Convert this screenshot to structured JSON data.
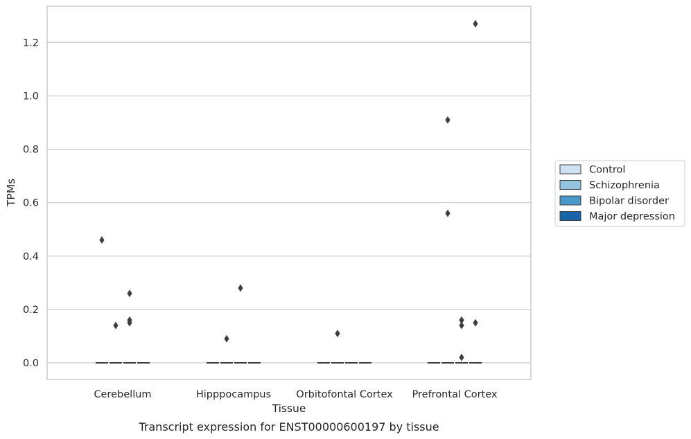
{
  "chart_data": {
    "type": "box",
    "caption": "Transcript expression for ENST00000600197 by tissue",
    "xlabel": "Tissue",
    "ylabel": "TPMs",
    "categories": [
      "Cerebellum",
      "Hipppocampus",
      "Orbitofontal Cortex",
      "Prefrontal Cortex"
    ],
    "ylim": [
      -0.06,
      1.33
    ],
    "yticks": [
      "0.0",
      "0.2",
      "0.4",
      "0.6",
      "0.8",
      "1.0",
      "1.2"
    ],
    "grid": true,
    "legend_position": "right",
    "series": [
      {
        "name": "Control",
        "color": "#d0e1f2"
      },
      {
        "name": "Schizophrenia",
        "color": "#94c4df"
      },
      {
        "name": "Bipolar disorder",
        "color": "#4a98c9"
      },
      {
        "name": "Major depression",
        "color": "#1764ab"
      }
    ],
    "medians": [
      [
        0,
        0,
        0,
        0
      ],
      [
        0,
        0,
        0,
        0
      ],
      [
        0,
        0,
        0,
        0
      ],
      [
        0,
        0,
        0,
        0
      ]
    ],
    "outliers": [
      {
        "category": "Cerebellum",
        "series": "Control",
        "values": [
          0.46
        ]
      },
      {
        "category": "Cerebellum",
        "series": "Schizophrenia",
        "values": [
          0.14
        ]
      },
      {
        "category": "Cerebellum",
        "series": "Bipolar disorder",
        "values": [
          0.26,
          0.16,
          0.15
        ]
      },
      {
        "category": "Hipppocampus",
        "series": "Schizophrenia",
        "values": [
          0.09
        ]
      },
      {
        "category": "Hipppocampus",
        "series": "Bipolar disorder",
        "values": [
          0.28
        ]
      },
      {
        "category": "Orbitofontal Cortex",
        "series": "Schizophrenia",
        "values": [
          0.11
        ]
      },
      {
        "category": "Prefrontal Cortex",
        "series": "Schizophrenia",
        "values": [
          0.91,
          0.56
        ]
      },
      {
        "category": "Prefrontal Cortex",
        "series": "Bipolar disorder",
        "values": [
          0.16
        ]
      },
      {
        "category": "Prefrontal Cortex",
        "series": "Bipolar disorder",
        "values": [
          0.16,
          0.14,
          0.02
        ]
      },
      {
        "category": "Prefrontal Cortex",
        "series": "Major depression",
        "values": [
          1.27,
          0.15
        ]
      }
    ]
  }
}
